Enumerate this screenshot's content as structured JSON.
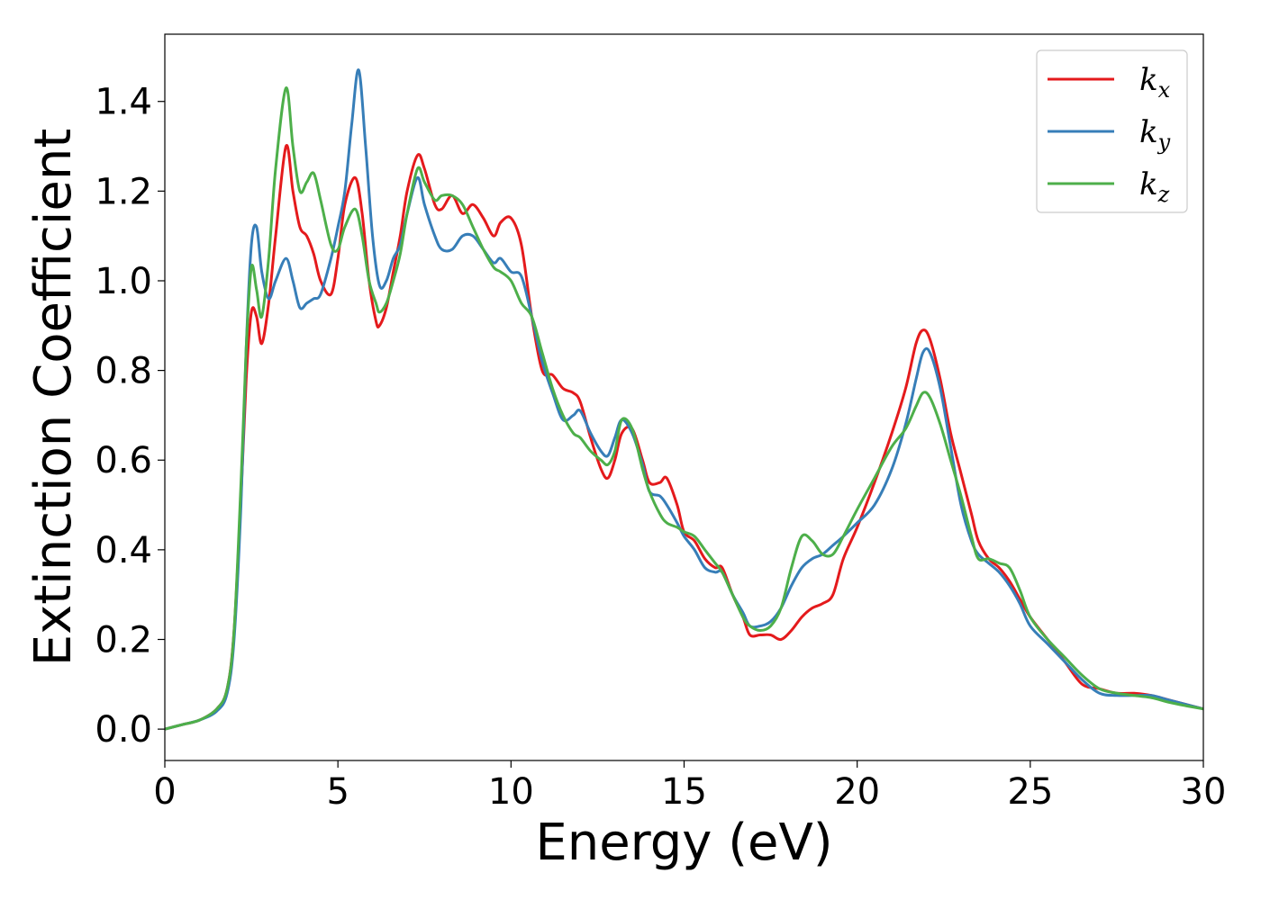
{
  "chart_data": {
    "type": "line",
    "title": "",
    "xlabel": "Energy (eV)",
    "ylabel": "Extinction Coefficient",
    "xlim": [
      0,
      30
    ],
    "ylim": [
      -0.07,
      1.55
    ],
    "xticks": [
      0,
      5,
      10,
      15,
      20,
      25,
      30
    ],
    "xtick_labels": [
      "0",
      "5",
      "10",
      "15",
      "20",
      "25",
      "30"
    ],
    "yticks": [
      0.0,
      0.2,
      0.4,
      0.6,
      0.8,
      1.0,
      1.2,
      1.4
    ],
    "ytick_labels": [
      "0.0",
      "0.2",
      "0.4",
      "0.6",
      "0.8",
      "1.0",
      "1.2",
      "1.4"
    ],
    "grid": false,
    "legend_position": "top-right",
    "series": [
      {
        "name": "k_x",
        "legend_base": "k",
        "legend_sub": "x",
        "color": "#e41a1c",
        "x": [
          0,
          0.5,
          1.0,
          1.5,
          1.8,
          2.0,
          2.2,
          2.35,
          2.5,
          2.65,
          2.8,
          3.0,
          3.2,
          3.5,
          3.7,
          3.9,
          4.1,
          4.3,
          4.5,
          4.8,
          5.0,
          5.2,
          5.5,
          5.7,
          5.9,
          6.1,
          6.2,
          6.4,
          6.6,
          6.8,
          7.0,
          7.3,
          7.5,
          7.8,
          8.0,
          8.3,
          8.6,
          8.9,
          9.2,
          9.5,
          9.7,
          10.0,
          10.3,
          10.6,
          10.9,
          11.2,
          11.5,
          11.8,
          12.0,
          12.3,
          12.6,
          12.8,
          13.0,
          13.2,
          13.5,
          13.8,
          14.0,
          14.3,
          14.5,
          14.8,
          15.0,
          15.3,
          15.6,
          15.9,
          16.1,
          16.4,
          16.7,
          16.9,
          17.2,
          17.5,
          17.8,
          18.1,
          18.4,
          18.7,
          19.0,
          19.3,
          19.6,
          20.0,
          20.5,
          21.0,
          21.4,
          21.7,
          21.9,
          22.1,
          22.4,
          22.7,
          23.0,
          23.3,
          23.5,
          23.8,
          24.1,
          24.4,
          24.7,
          25.0,
          25.5,
          26.0,
          26.5,
          27.0,
          27.5,
          28.0,
          28.5,
          29.0,
          29.5,
          30.0
        ],
        "y": [
          0.0,
          0.01,
          0.02,
          0.045,
          0.09,
          0.22,
          0.52,
          0.78,
          0.93,
          0.92,
          0.86,
          0.95,
          1.1,
          1.3,
          1.2,
          1.12,
          1.1,
          1.06,
          1.0,
          0.97,
          1.05,
          1.17,
          1.23,
          1.15,
          1.0,
          0.91,
          0.9,
          0.94,
          1.02,
          1.1,
          1.2,
          1.28,
          1.25,
          1.17,
          1.16,
          1.19,
          1.15,
          1.17,
          1.14,
          1.1,
          1.13,
          1.14,
          1.08,
          0.92,
          0.8,
          0.79,
          0.76,
          0.75,
          0.73,
          0.65,
          0.58,
          0.56,
          0.6,
          0.66,
          0.67,
          0.6,
          0.55,
          0.55,
          0.56,
          0.5,
          0.44,
          0.42,
          0.38,
          0.36,
          0.36,
          0.3,
          0.25,
          0.21,
          0.21,
          0.21,
          0.2,
          0.22,
          0.25,
          0.27,
          0.28,
          0.3,
          0.38,
          0.45,
          0.55,
          0.66,
          0.76,
          0.86,
          0.89,
          0.87,
          0.78,
          0.66,
          0.57,
          0.48,
          0.42,
          0.38,
          0.36,
          0.33,
          0.29,
          0.25,
          0.2,
          0.15,
          0.1,
          0.09,
          0.08,
          0.08,
          0.075,
          0.065,
          0.055,
          0.045
        ]
      },
      {
        "name": "k_y",
        "legend_base": "k",
        "legend_sub": "y",
        "color": "#377eb8",
        "x": [
          0,
          0.5,
          1.0,
          1.5,
          1.8,
          2.0,
          2.2,
          2.35,
          2.5,
          2.65,
          2.8,
          3.0,
          3.2,
          3.5,
          3.7,
          3.9,
          4.1,
          4.3,
          4.5,
          4.8,
          5.0,
          5.2,
          5.4,
          5.6,
          5.8,
          6.0,
          6.2,
          6.4,
          6.6,
          6.8,
          7.0,
          7.3,
          7.5,
          7.8,
          8.0,
          8.3,
          8.6,
          8.9,
          9.2,
          9.5,
          9.7,
          10.0,
          10.3,
          10.6,
          10.9,
          11.2,
          11.5,
          11.8,
          12.0,
          12.3,
          12.6,
          12.8,
          13.0,
          13.2,
          13.5,
          13.8,
          14.0,
          14.3,
          14.5,
          14.8,
          15.0,
          15.3,
          15.6,
          15.9,
          16.1,
          16.4,
          16.7,
          16.9,
          17.2,
          17.5,
          17.8,
          18.1,
          18.4,
          18.7,
          19.0,
          19.3,
          19.6,
          20.0,
          20.5,
          21.0,
          21.4,
          21.7,
          21.9,
          22.1,
          22.4,
          22.7,
          23.0,
          23.3,
          23.5,
          23.8,
          24.1,
          24.4,
          24.7,
          25.0,
          25.5,
          26.0,
          26.5,
          27.0,
          27.5,
          28.0,
          28.5,
          29.0,
          29.5,
          30.0
        ],
        "y": [
          0.0,
          0.01,
          0.02,
          0.04,
          0.08,
          0.2,
          0.5,
          0.85,
          1.08,
          1.12,
          1.02,
          0.96,
          1.0,
          1.05,
          1.0,
          0.94,
          0.95,
          0.96,
          0.97,
          1.05,
          1.12,
          1.2,
          1.35,
          1.47,
          1.3,
          1.1,
          0.99,
          1.0,
          1.05,
          1.08,
          1.15,
          1.23,
          1.17,
          1.1,
          1.07,
          1.07,
          1.1,
          1.1,
          1.07,
          1.04,
          1.05,
          1.02,
          1.01,
          0.92,
          0.82,
          0.75,
          0.69,
          0.7,
          0.71,
          0.66,
          0.62,
          0.61,
          0.65,
          0.69,
          0.66,
          0.59,
          0.53,
          0.52,
          0.5,
          0.46,
          0.43,
          0.4,
          0.36,
          0.35,
          0.35,
          0.3,
          0.26,
          0.23,
          0.23,
          0.24,
          0.27,
          0.32,
          0.36,
          0.38,
          0.39,
          0.41,
          0.43,
          0.46,
          0.5,
          0.58,
          0.68,
          0.78,
          0.84,
          0.84,
          0.76,
          0.63,
          0.5,
          0.42,
          0.39,
          0.37,
          0.35,
          0.32,
          0.28,
          0.23,
          0.19,
          0.15,
          0.11,
          0.08,
          0.075,
          0.075,
          0.075,
          0.065,
          0.055,
          0.045
        ]
      },
      {
        "name": "k_z",
        "legend_base": "k",
        "legend_sub": "z",
        "color": "#4daf4a",
        "x": [
          0,
          0.5,
          1.0,
          1.5,
          1.8,
          2.0,
          2.2,
          2.35,
          2.5,
          2.65,
          2.8,
          3.0,
          3.2,
          3.5,
          3.7,
          3.9,
          4.1,
          4.3,
          4.5,
          4.8,
          5.0,
          5.2,
          5.5,
          5.7,
          5.9,
          6.1,
          6.2,
          6.4,
          6.6,
          6.8,
          7.0,
          7.3,
          7.5,
          7.8,
          8.0,
          8.3,
          8.6,
          8.9,
          9.2,
          9.5,
          9.7,
          10.0,
          10.3,
          10.6,
          10.9,
          11.2,
          11.5,
          11.8,
          12.0,
          12.3,
          12.6,
          12.8,
          13.0,
          13.2,
          13.5,
          13.8,
          14.0,
          14.3,
          14.5,
          14.8,
          15.0,
          15.3,
          15.6,
          15.9,
          16.1,
          16.4,
          16.7,
          16.9,
          17.2,
          17.5,
          17.8,
          18.1,
          18.4,
          18.7,
          19.0,
          19.3,
          19.6,
          20.0,
          20.5,
          21.0,
          21.4,
          21.7,
          21.9,
          22.1,
          22.4,
          22.7,
          23.0,
          23.3,
          23.5,
          23.8,
          24.1,
          24.4,
          24.7,
          25.0,
          25.5,
          26.0,
          26.5,
          27.0,
          27.5,
          28.0,
          28.5,
          29.0,
          29.5,
          30.0
        ],
        "y": [
          0.0,
          0.01,
          0.02,
          0.045,
          0.09,
          0.22,
          0.55,
          0.85,
          1.03,
          0.98,
          0.92,
          1.05,
          1.25,
          1.43,
          1.3,
          1.2,
          1.22,
          1.24,
          1.18,
          1.08,
          1.07,
          1.12,
          1.16,
          1.1,
          1.0,
          0.95,
          0.93,
          0.95,
          1.0,
          1.06,
          1.15,
          1.25,
          1.22,
          1.18,
          1.19,
          1.19,
          1.17,
          1.12,
          1.07,
          1.03,
          1.02,
          1.0,
          0.95,
          0.92,
          0.84,
          0.76,
          0.7,
          0.66,
          0.65,
          0.62,
          0.6,
          0.59,
          0.62,
          0.69,
          0.67,
          0.58,
          0.53,
          0.48,
          0.46,
          0.45,
          0.44,
          0.43,
          0.4,
          0.37,
          0.35,
          0.3,
          0.25,
          0.23,
          0.22,
          0.23,
          0.27,
          0.36,
          0.43,
          0.42,
          0.39,
          0.39,
          0.43,
          0.49,
          0.56,
          0.63,
          0.67,
          0.72,
          0.75,
          0.74,
          0.68,
          0.6,
          0.52,
          0.43,
          0.38,
          0.38,
          0.37,
          0.36,
          0.31,
          0.25,
          0.2,
          0.16,
          0.12,
          0.09,
          0.08,
          0.075,
          0.07,
          0.06,
          0.052,
          0.045
        ]
      }
    ]
  }
}
